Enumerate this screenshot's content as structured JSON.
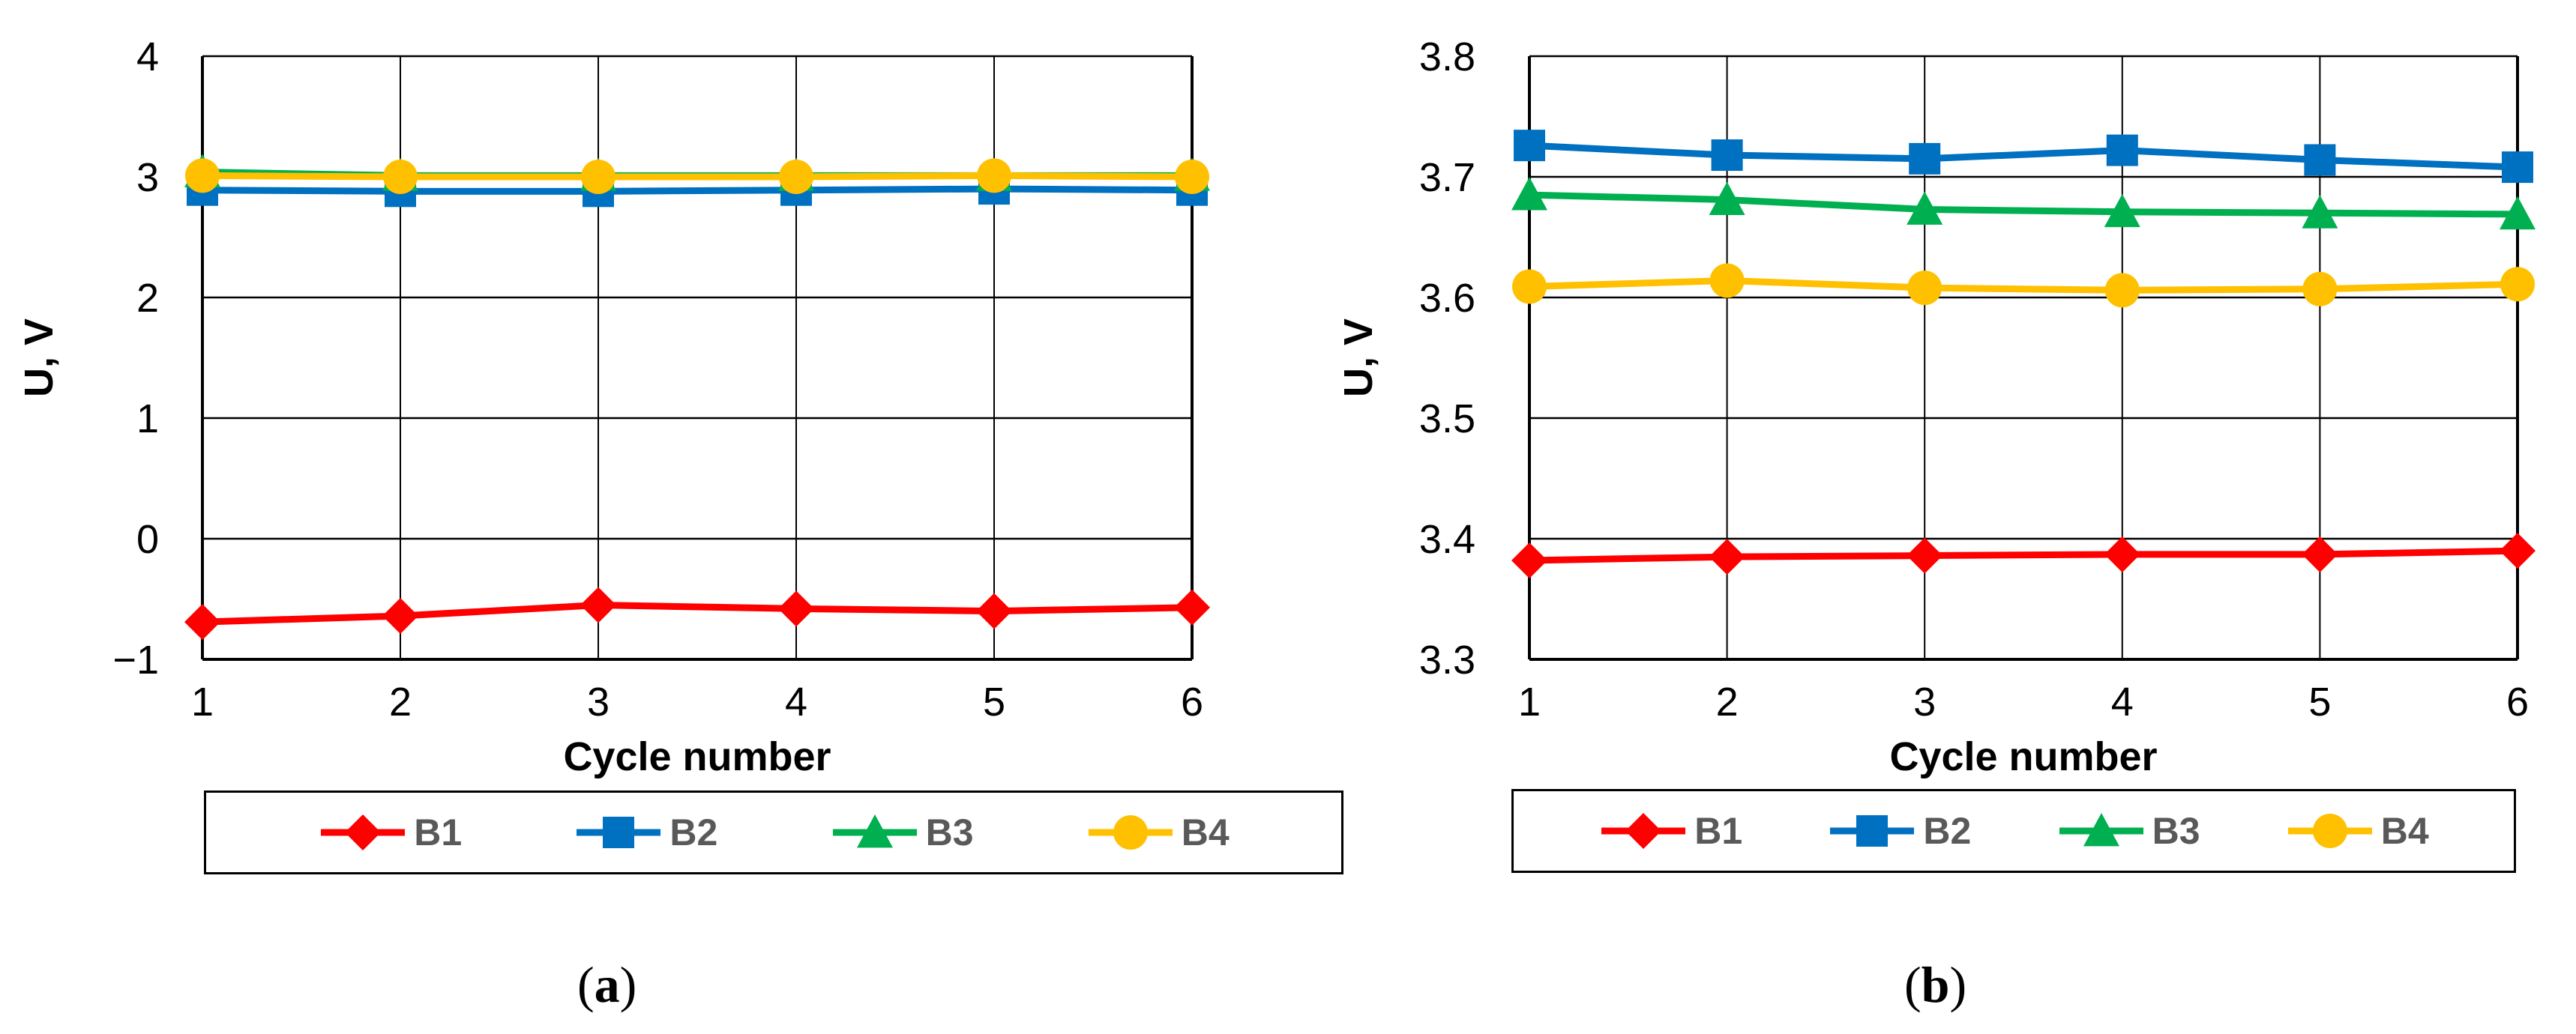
{
  "colors": {
    "B1": "#ff0000",
    "B2": "#0070c0",
    "B3": "#00b050",
    "B4": "#ffc000"
  },
  "markers": {
    "B1": "diamond",
    "B2": "square",
    "B3": "triangle",
    "B4": "circle"
  },
  "chart_data": [
    {
      "type": "line",
      "panel": "a",
      "caption": "(a)",
      "xlabel": "Cycle number",
      "ylabel": "U, V",
      "xlim": [
        1,
        6
      ],
      "ylim": [
        -1,
        4
      ],
      "xticks": [
        "1",
        "2",
        "3",
        "4",
        "5",
        "6"
      ],
      "yticks": [
        "−1",
        "0",
        "1",
        "2",
        "3",
        "4"
      ],
      "ytick_values": [
        -1,
        0,
        1,
        2,
        3,
        4
      ],
      "grid": true,
      "legend": "bottom",
      "x": [
        1,
        2,
        3,
        4,
        5,
        6
      ],
      "series": [
        {
          "name": "B1",
          "values": [
            -0.69,
            -0.64,
            -0.55,
            -0.58,
            -0.6,
            -0.57
          ]
        },
        {
          "name": "B2",
          "values": [
            2.89,
            2.88,
            2.88,
            2.89,
            2.9,
            2.89
          ]
        },
        {
          "name": "B3",
          "values": [
            3.04,
            3.01,
            3.01,
            3.01,
            3.01,
            3.01
          ]
        },
        {
          "name": "B4",
          "values": [
            3.01,
            3.0,
            3.0,
            3.0,
            3.01,
            3.0
          ]
        }
      ]
    },
    {
      "type": "line",
      "panel": "b",
      "caption": "(b)",
      "xlabel": "Cycle number",
      "ylabel": "U, V",
      "xlim": [
        1,
        6
      ],
      "ylim": [
        3.3,
        3.8
      ],
      "xticks": [
        "1",
        "2",
        "3",
        "4",
        "5",
        "6"
      ],
      "yticks": [
        "3.3",
        "3.4",
        "3.5",
        "3.6",
        "3.7",
        "3.8"
      ],
      "ytick_values": [
        3.3,
        3.4,
        3.5,
        3.6,
        3.7,
        3.8
      ],
      "grid": true,
      "legend": "bottom",
      "x": [
        1,
        2,
        3,
        4,
        5,
        6
      ],
      "series": [
        {
          "name": "B1",
          "values": [
            3.382,
            3.385,
            3.386,
            3.387,
            3.387,
            3.39
          ]
        },
        {
          "name": "B2",
          "values": [
            3.726,
            3.718,
            3.715,
            3.722,
            3.714,
            3.708
          ]
        },
        {
          "name": "B3",
          "values": [
            3.685,
            3.681,
            3.673,
            3.671,
            3.67,
            3.669
          ]
        },
        {
          "name": "B4",
          "values": [
            3.609,
            3.614,
            3.608,
            3.606,
            3.607,
            3.611
          ]
        }
      ]
    }
  ]
}
